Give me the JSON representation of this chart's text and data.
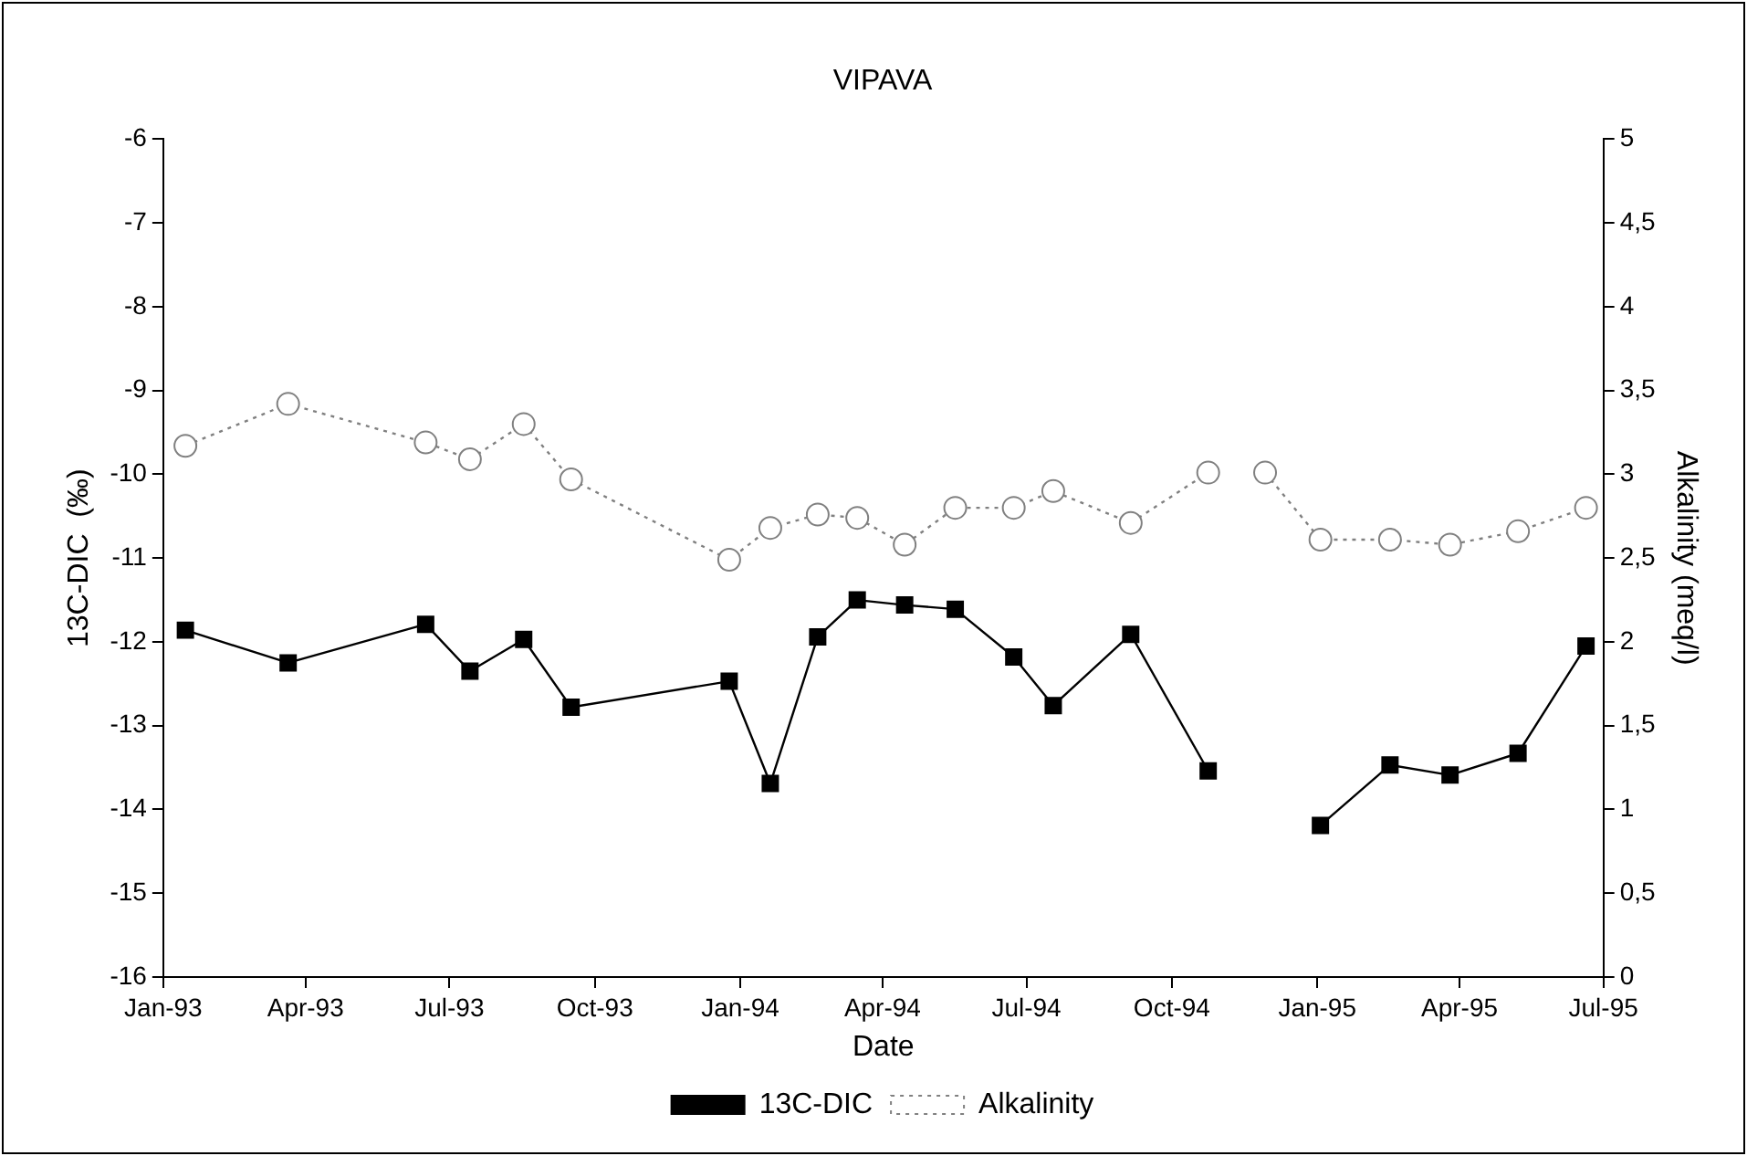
{
  "chart_data": {
    "type": "line",
    "title": "VIPAVA",
    "xlabel": "Date",
    "ylabel": "13C-DIC  (‰)",
    "y2label": "Alkalinity (meq/l)",
    "x": [
      "1993-01-15",
      "1993-03-21",
      "1993-06-16",
      "1993-07-14",
      "1993-08-17",
      "1993-09-16",
      "1993-12-25",
      "1994-01-20",
      "1994-02-19",
      "1994-03-16",
      "1994-04-15",
      "1994-05-17",
      "1994-06-23",
      "1994-07-18",
      "1994-09-05",
      "1994-10-24",
      "1994-11-12",
      "1994-11-29",
      "1995-01-03",
      "1995-02-16",
      "1995-03-26",
      "1995-05-08",
      "1995-06-20"
    ],
    "series": [
      {
        "name": "13C-DIC",
        "color": "#000000",
        "marker": "square",
        "line_style": "solid",
        "values": [
          -11.86,
          -12.25,
          -11.79,
          -12.35,
          -11.97,
          -12.78,
          -12.47,
          -13.69,
          -11.94,
          -11.5,
          -11.56,
          -11.61,
          -12.18,
          -12.76,
          -11.91,
          -13.54,
          null,
          null,
          -14.19,
          -13.47,
          -13.59,
          -13.33,
          -12.05
        ]
      },
      {
        "name": "Alkalinity",
        "color": "#808080",
        "marker": "circle",
        "line_style": "dotted",
        "axis": "y2",
        "values": [
          3.17,
          3.42,
          3.19,
          3.09,
          3.3,
          2.97,
          2.49,
          2.68,
          2.76,
          2.74,
          2.58,
          2.8,
          2.8,
          2.9,
          2.71,
          3.01,
          null,
          3.01,
          2.61,
          2.61,
          2.58,
          2.66,
          2.8
        ]
      }
    ],
    "xlim": [
      "1993-01",
      "1995-07"
    ],
    "xticks": [
      {
        "value": "1993-01",
        "label": "Jan-93"
      },
      {
        "value": "1993-04",
        "label": "Apr-93"
      },
      {
        "value": "1993-07",
        "label": "Jul-93"
      },
      {
        "value": "1993-10",
        "label": "Oct-93"
      },
      {
        "value": "1994-01",
        "label": "Jan-94"
      },
      {
        "value": "1994-04",
        "label": "Apr-94"
      },
      {
        "value": "1994-07",
        "label": "Jul-94"
      },
      {
        "value": "1994-10",
        "label": "Oct-94"
      },
      {
        "value": "1995-01",
        "label": "Jan-95"
      },
      {
        "value": "1995-04",
        "label": "Apr-95"
      },
      {
        "value": "1995-07",
        "label": "Jul-95"
      }
    ],
    "ylim": [
      -16,
      -6
    ],
    "yticks": [
      -16,
      -15,
      -14,
      -13,
      -12,
      -11,
      -10,
      -9,
      -8,
      -7,
      -6
    ],
    "y2lim": [
      0,
      5
    ],
    "y2ticks": [
      0,
      {
        "value": 0.5,
        "label": "0,5"
      },
      1,
      {
        "value": 1.5,
        "label": "1,5"
      },
      2,
      {
        "value": 2.5,
        "label": "2,5"
      },
      3,
      {
        "value": 3.5,
        "label": "3,5"
      },
      4,
      {
        "value": 4.5,
        "label": "4,5"
      },
      5
    ],
    "grid": false,
    "legend": "bottom"
  }
}
